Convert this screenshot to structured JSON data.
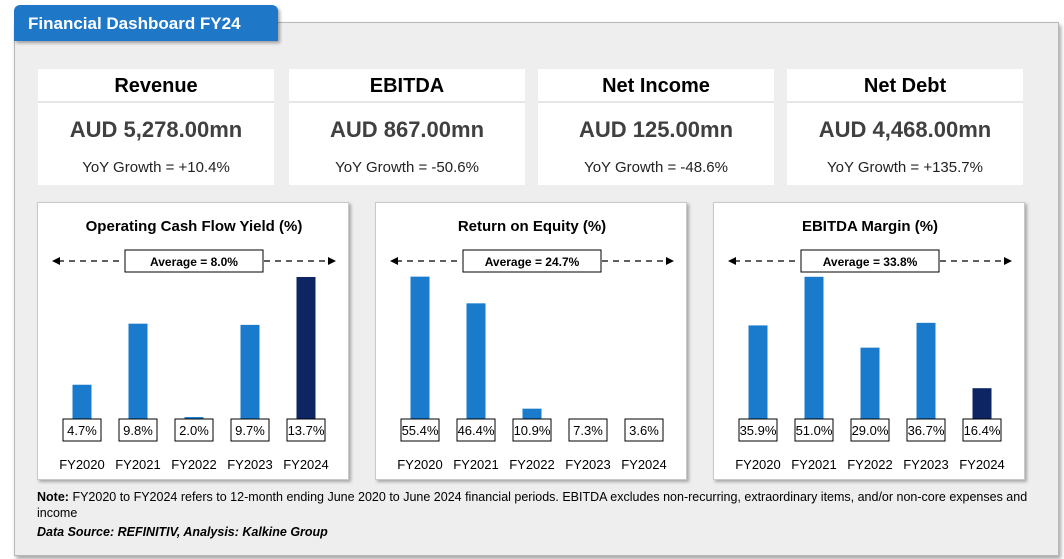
{
  "header": {
    "title": "Financial Dashboard FY24"
  },
  "kpis": [
    {
      "label": "Revenue",
      "value": "AUD 5,278.00mn",
      "growth": "YoY Growth = +10.4%"
    },
    {
      "label": "EBITDA",
      "value": "AUD 867.00mn",
      "growth": "YoY Growth = -50.6%"
    },
    {
      "label": "Net Income",
      "value": "AUD 125.00mn",
      "growth": "YoY Growth = -48.6%"
    },
    {
      "label": "Net Debt",
      "value": "AUD 4,468.00mn",
      "growth": "YoY Growth = +135.7%"
    }
  ],
  "chart_data": [
    {
      "type": "bar",
      "title": "Operating Cash Flow Yield (%)",
      "average_label": "Average = 8.0%",
      "categories": [
        "FY2020",
        "FY2021",
        "FY2022",
        "FY2023",
        "FY2024"
      ],
      "values": [
        4.7,
        9.8,
        2.0,
        9.7,
        13.7
      ],
      "labels": [
        "4.7%",
        "9.8%",
        "2.0%",
        "9.7%",
        "13.7%"
      ],
      "ylim": [
        0,
        14.2
      ],
      "colors": [
        "#1a7bcc",
        "#1a7bcc",
        "#1a7bcc",
        "#1a7bcc",
        "#0d2563"
      ]
    },
    {
      "type": "bar",
      "title": "Return on Equity (%)",
      "average_label": "Average = 24.7%",
      "categories": [
        "FY2020",
        "FY2021",
        "FY2022",
        "FY2023",
        "FY2024"
      ],
      "values": [
        55.4,
        46.4,
        10.9,
        7.3,
        3.6
      ],
      "labels": [
        "55.4%",
        "46.4%",
        "10.9%",
        "7.3%",
        "3.6%"
      ],
      "ylim": [
        0,
        57.3
      ],
      "colors": [
        "#1a7bcc",
        "#1a7bcc",
        "#1a7bcc",
        "#1a7bcc",
        "#0d2563"
      ]
    },
    {
      "type": "bar",
      "title": "EBITDA Margin (%)",
      "average_label": "Average = 33.8%",
      "categories": [
        "FY2020",
        "FY2021",
        "FY2022",
        "FY2023",
        "FY2024"
      ],
      "values": [
        35.9,
        51.0,
        29.0,
        36.7,
        16.4
      ],
      "labels": [
        "35.9%",
        "51.0%",
        "29.0%",
        "36.7%",
        "16.4%"
      ],
      "ylim": [
        0,
        52.8
      ],
      "colors": [
        "#1a7bcc",
        "#1a7bcc",
        "#1a7bcc",
        "#1a7bcc",
        "#0d2563"
      ]
    }
  ],
  "note": {
    "label": "Note:",
    "text": "FY2020 to FY2024 refers to 12-month ending June 2020 to June 2024 financial periods. EBITDA excludes non-recurring, extraordinary items, and/or non-core expenses and income"
  },
  "source": "Data Source: REFINITIV, Analysis: Kalkine Group"
}
